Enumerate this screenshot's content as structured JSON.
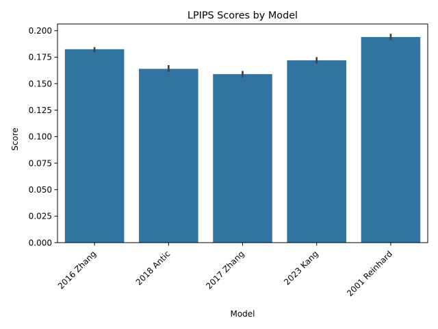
{
  "chart_data": {
    "type": "bar",
    "title": "LPIPS Scores by Model",
    "xlabel": "Model",
    "ylabel": "Score",
    "categories": [
      "2016 Zhang",
      "2018 Antic",
      "2017 Zhang",
      "2023 Kang",
      "2001 Reinhard"
    ],
    "values": [
      0.1825,
      0.164,
      0.159,
      0.172,
      0.194
    ],
    "error_low": [
      0.1795,
      0.161,
      0.156,
      0.169,
      0.191
    ],
    "error_high": [
      0.1845,
      0.1675,
      0.162,
      0.175,
      0.197
    ],
    "ylim": [
      0,
      0.2063
    ],
    "yticks": [
      "0.000",
      "0.025",
      "0.050",
      "0.075",
      "0.100",
      "0.125",
      "0.150",
      "0.175",
      "0.200"
    ],
    "grid": false,
    "bar_color": "#3274a1",
    "error_color": "#424242"
  }
}
